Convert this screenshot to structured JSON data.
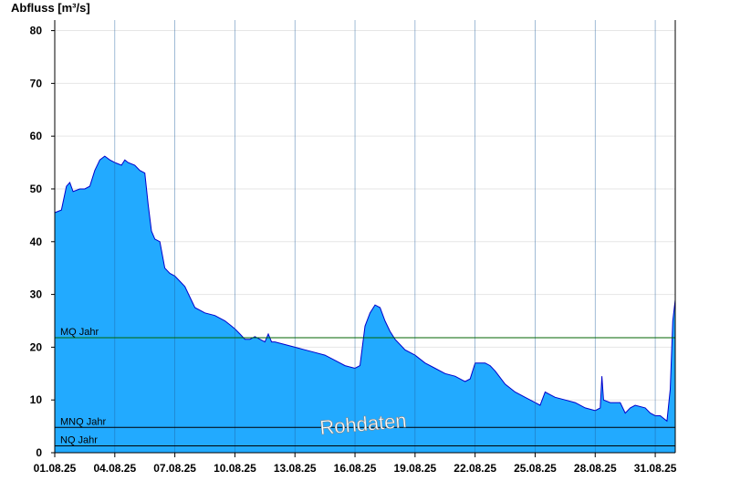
{
  "chart_data": {
    "type": "area",
    "ylabel": "Abfluss [m³/s]",
    "ylim": [
      0,
      82
    ],
    "yticks": [
      0,
      10,
      20,
      30,
      40,
      50,
      60,
      70,
      80
    ],
    "x_start": "01.08.25",
    "x_end": "31.08.25",
    "xticks": [
      "01.08.25",
      "04.08.25",
      "07.08.25",
      "10.08.25",
      "13.08.25",
      "16.08.25",
      "19.08.25",
      "22.08.25",
      "25.08.25",
      "28.08.25",
      "31.08.25"
    ],
    "grid": true,
    "area_color": "#22aaff",
    "line_color": "#0000cc",
    "series": [
      {
        "points": [
          [
            "01.08.25 00:00",
            45.5
          ],
          [
            "01.08.25 08:00",
            46
          ],
          [
            "01.08.25 14:00",
            50.5
          ],
          [
            "01.08.25 18:00",
            51.2
          ],
          [
            "01.08.25 22:00",
            49.5
          ],
          [
            "02.08.25 06:00",
            50
          ],
          [
            "02.08.25 12:00",
            50
          ],
          [
            "02.08.25 18:00",
            50.5
          ],
          [
            "03.08.25 00:00",
            53.5
          ],
          [
            "03.08.25 06:00",
            55.5
          ],
          [
            "03.08.25 12:00",
            56.2
          ],
          [
            "03.08.25 18:00",
            55.5
          ],
          [
            "04.08.25 00:00",
            55
          ],
          [
            "04.08.25 08:00",
            54.5
          ],
          [
            "04.08.25 12:00",
            55.5
          ],
          [
            "04.08.25 16:00",
            55
          ],
          [
            "05.08.25 00:00",
            54.5
          ],
          [
            "05.08.25 06:00",
            53.5
          ],
          [
            "05.08.25 12:00",
            53
          ],
          [
            "05.08.25 16:00",
            47
          ],
          [
            "05.08.25 20:00",
            42
          ],
          [
            "06.08.25 00:00",
            40.5
          ],
          [
            "06.08.25 06:00",
            40
          ],
          [
            "06.08.25 12:00",
            35
          ],
          [
            "06.08.25 18:00",
            34
          ],
          [
            "07.08.25 00:00",
            33.5
          ],
          [
            "07.08.25 06:00",
            32.5
          ],
          [
            "07.08.25 12:00",
            31.5
          ],
          [
            "07.08.25 18:00",
            29.5
          ],
          [
            "08.08.25 00:00",
            27.5
          ],
          [
            "08.08.25 12:00",
            26.5
          ],
          [
            "09.08.25 00:00",
            26
          ],
          [
            "09.08.25 12:00",
            25
          ],
          [
            "10.08.25 00:00",
            23.5
          ],
          [
            "10.08.25 06:00",
            22.5
          ],
          [
            "10.08.25 12:00",
            21.5
          ],
          [
            "10.08.25 18:00",
            21.5
          ],
          [
            "11.08.25 00:00",
            22
          ],
          [
            "11.08.25 06:00",
            21.5
          ],
          [
            "11.08.25 12:00",
            21
          ],
          [
            "11.08.25 16:00",
            22.5
          ],
          [
            "11.08.25 20:00",
            21
          ],
          [
            "12.08.25 00:00",
            21
          ],
          [
            "12.08.25 12:00",
            20.5
          ],
          [
            "13.08.25 00:00",
            20
          ],
          [
            "13.08.25 12:00",
            19.5
          ],
          [
            "14.08.25 00:00",
            19
          ],
          [
            "14.08.25 12:00",
            18.5
          ],
          [
            "15.08.25 00:00",
            17.5
          ],
          [
            "15.08.25 12:00",
            16.5
          ],
          [
            "16.08.25 00:00",
            16
          ],
          [
            "16.08.25 06:00",
            16.5
          ],
          [
            "16.08.25 12:00",
            24
          ],
          [
            "16.08.25 18:00",
            26.5
          ],
          [
            "17.08.25 00:00",
            28
          ],
          [
            "17.08.25 06:00",
            27.5
          ],
          [
            "17.08.25 12:00",
            25
          ],
          [
            "17.08.25 18:00",
            23
          ],
          [
            "18.08.25 00:00",
            21.5
          ],
          [
            "18.08.25 12:00",
            19.5
          ],
          [
            "19.08.25 00:00",
            18.5
          ],
          [
            "19.08.25 12:00",
            17
          ],
          [
            "20.08.25 00:00",
            16
          ],
          [
            "20.08.25 12:00",
            15
          ],
          [
            "21.08.25 00:00",
            14.5
          ],
          [
            "21.08.25 12:00",
            13.5
          ],
          [
            "21.08.25 18:00",
            14
          ],
          [
            "22.08.25 00:00",
            17
          ],
          [
            "22.08.25 12:00",
            17
          ],
          [
            "22.08.25 18:00",
            16.5
          ],
          [
            "23.08.25 00:00",
            15.5
          ],
          [
            "23.08.25 12:00",
            13
          ],
          [
            "24.08.25 00:00",
            11.5
          ],
          [
            "24.08.25 12:00",
            10.5
          ],
          [
            "25.08.25 00:00",
            9.5
          ],
          [
            "25.08.25 06:00",
            9
          ],
          [
            "25.08.25 12:00",
            11.5
          ],
          [
            "25.08.25 18:00",
            11
          ],
          [
            "26.08.25 00:00",
            10.5
          ],
          [
            "26.08.25 12:00",
            10
          ],
          [
            "27.08.25 00:00",
            9.5
          ],
          [
            "27.08.25 12:00",
            8.5
          ],
          [
            "28.08.25 00:00",
            8
          ],
          [
            "28.08.25 06:00",
            8.5
          ],
          [
            "28.08.25 08:00",
            14.5
          ],
          [
            "28.08.25 10:00",
            10
          ],
          [
            "28.08.25 18:00",
            9.5
          ],
          [
            "29.08.25 00:00",
            9.5
          ],
          [
            "29.08.25 06:00",
            9.5
          ],
          [
            "29.08.25 12:00",
            7.5
          ],
          [
            "29.08.25 18:00",
            8.5
          ],
          [
            "30.08.25 00:00",
            9
          ],
          [
            "30.08.25 12:00",
            8.5
          ],
          [
            "30.08.25 18:00",
            7.5
          ],
          [
            "31.08.25 00:00",
            7
          ],
          [
            "31.08.25 06:00",
            7
          ],
          [
            "31.08.25 10:00",
            6.5
          ],
          [
            "31.08.25 14:00",
            6
          ],
          [
            "31.08.25 18:00",
            12
          ],
          [
            "31.08.25 21:00",
            25
          ],
          [
            "31.08.25 23:59",
            29
          ]
        ]
      }
    ],
    "reference_lines": [
      {
        "label": "MQ Jahr",
        "value": 21.8,
        "color": "#006600"
      },
      {
        "label": "MNQ Jahr",
        "value": 4.8,
        "color": "#000000"
      },
      {
        "label": "NQ Jahr",
        "value": 1.3,
        "color": "#000000"
      }
    ],
    "annotation": "Rohdaten",
    "annotation_color": "#ffffff"
  }
}
